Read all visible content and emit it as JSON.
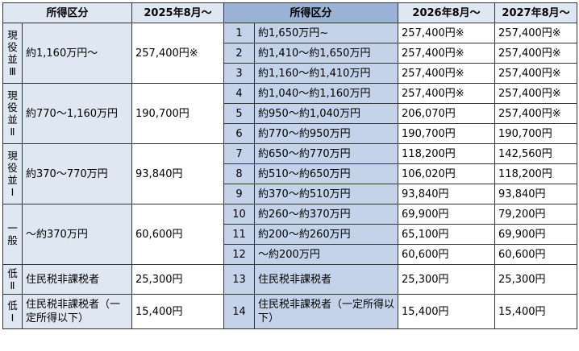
{
  "headers": {
    "income_category_left": "所得区分",
    "aug_2025": "2025年8月～",
    "income_category_right": "所得区分",
    "aug_2026": "2026年8月～",
    "aug_2027": "2027年8月～"
  },
  "groups": [
    {
      "category": "現役並Ⅲ",
      "range": "約1,160万円～",
      "amount_2025": "257,400円※",
      "rows": [
        {
          "no": "1",
          "range": "約1,650万円~",
          "amount_2026": "257,400円※",
          "amount_2027": "257,400円※"
        },
        {
          "no": "2",
          "range": "約1,410～約1,650万円",
          "amount_2026": "257,400円※",
          "amount_2027": "257,400円※"
        },
        {
          "no": "3",
          "range": "約1,160～約1,410万円",
          "amount_2026": "257,400円※",
          "amount_2027": "257,400円※"
        }
      ]
    },
    {
      "category": "現役並Ⅱ",
      "range": "約770～1,160万円",
      "amount_2025": "190,700円",
      "rows": [
        {
          "no": "4",
          "range": "約1,040～約1,160万円",
          "amount_2026": "257,400円※",
          "amount_2027": "257,400円※"
        },
        {
          "no": "5",
          "range": "約950～約1,040万円",
          "amount_2026": "206,070円",
          "amount_2027": "257,400円※"
        },
        {
          "no": "6",
          "range": "約770～約950万円",
          "amount_2026": "190,700円",
          "amount_2027": "190,700円"
        }
      ]
    },
    {
      "category": "現役並Ⅰ",
      "range": "約370～770万円",
      "amount_2025": "93,840円",
      "rows": [
        {
          "no": "7",
          "range": "約650～約770万円",
          "amount_2026": "118,200円",
          "amount_2027": "142,560円"
        },
        {
          "no": "8",
          "range": "約510～約650万円",
          "amount_2026": "106,020円",
          "amount_2027": "118,200円"
        },
        {
          "no": "9",
          "range": "約370～約510万円",
          "amount_2026": "93,840円",
          "amount_2027": "93,840円"
        }
      ]
    },
    {
      "category": "一般",
      "range": "～約370万円",
      "amount_2025": "60,600円",
      "rows": [
        {
          "no": "10",
          "range": "約260～約370万円",
          "amount_2026": "69,900円",
          "amount_2027": "79,200円"
        },
        {
          "no": "11",
          "range": "約200～約260万円",
          "amount_2026": "65,100円",
          "amount_2027": "69,900円"
        },
        {
          "no": "12",
          "range": "～約200万円",
          "amount_2026": "60,600円",
          "amount_2027": "60,600円"
        }
      ]
    },
    {
      "category": "低Ⅱ",
      "range": "住民税非課税者",
      "amount_2025": "25,300円",
      "rows": [
        {
          "no": "13",
          "range": "住民税非課税者",
          "amount_2026": "25,300円",
          "amount_2027": "25,300円"
        }
      ]
    },
    {
      "category": "低Ⅰ",
      "range": "住民税非課税者（一定所得以下）",
      "amount_2025": "15,400円",
      "rows": [
        {
          "no": "14",
          "range": "住民税非課税者（一定所得以下）",
          "amount_2026": "15,400円",
          "amount_2027": "15,400円"
        }
      ]
    }
  ]
}
